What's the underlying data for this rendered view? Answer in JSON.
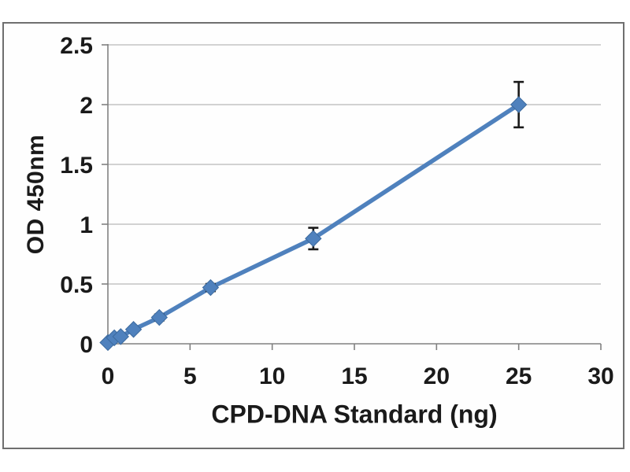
{
  "chart_data": {
    "type": "line",
    "title": "",
    "xlabel": "CPD-DNA Standard (ng)",
    "ylabel": "OD 450nm",
    "x": [
      0,
      0.39,
      0.78,
      1.56,
      3.13,
      6.25,
      12.5,
      25
    ],
    "y": [
      0.01,
      0.05,
      0.06,
      0.12,
      0.22,
      0.47,
      0.88,
      2.0
    ],
    "y_err": [
      0.015,
      0.015,
      0.02,
      0.02,
      0.025,
      0.03,
      0.09,
      0.19
    ],
    "xlim": [
      0,
      30
    ],
    "ylim": [
      0,
      2.5
    ],
    "x_ticks": [
      0,
      5,
      10,
      15,
      20,
      25,
      30
    ],
    "x_tick_labels": [
      "0",
      "5",
      "10",
      "15",
      "20",
      "25",
      "30"
    ],
    "y_ticks": [
      0,
      0.5,
      1,
      1.5,
      2,
      2.5
    ],
    "y_tick_labels": [
      "0",
      "0.5",
      "1",
      "1.5",
      "2",
      "2.5"
    ],
    "grid": "horizontal",
    "legend": "none",
    "marker": "diamond",
    "colors": {
      "series": "#4f81bd",
      "marker_edge": "#3c6a9e",
      "error_bar": "#1a1a1a",
      "gridline": "#b8b8b8",
      "axis": "#808080",
      "text": "#1a1a1a",
      "frame_border": "#6f6f6f",
      "background": "#ffffff"
    }
  }
}
